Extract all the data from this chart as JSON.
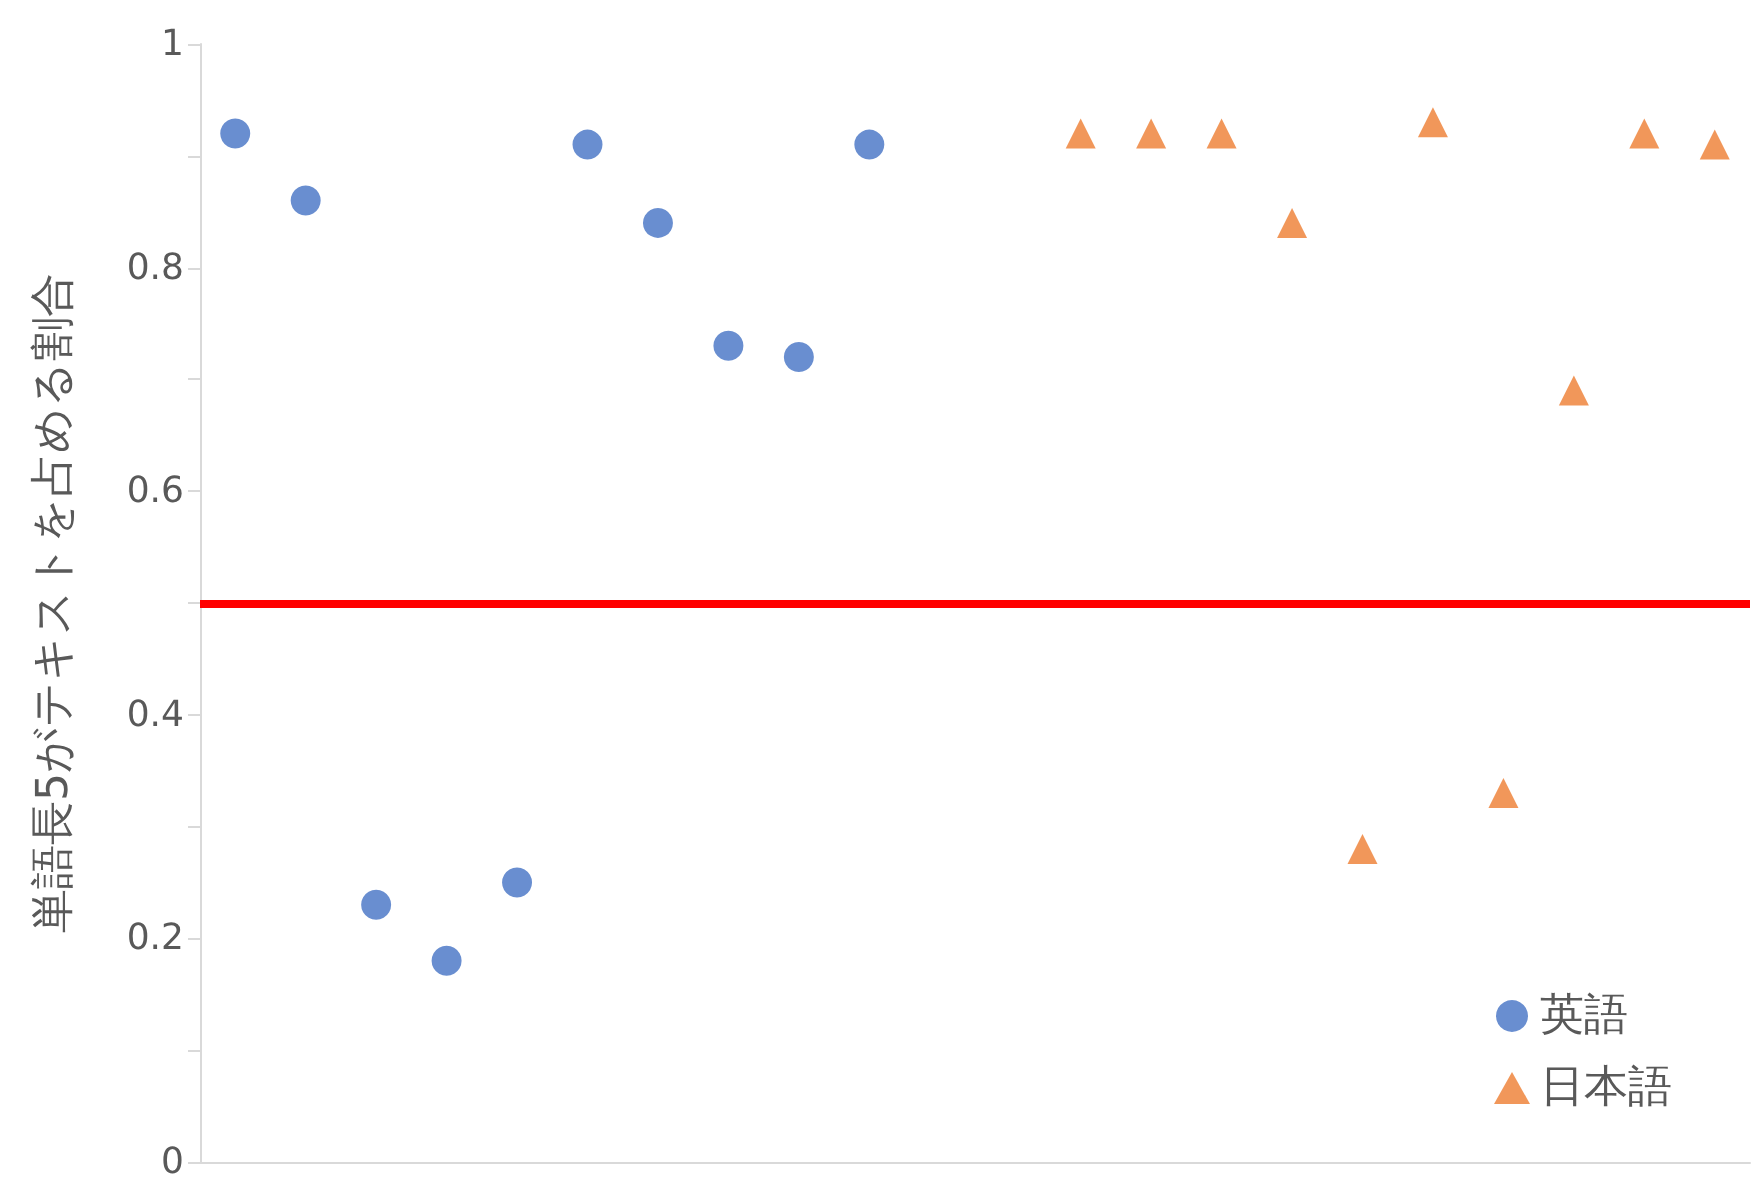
{
  "chart_data": {
    "type": "scatter",
    "ylabel": "単語長5がテキストを占める割合",
    "categories": [
      null,
      null,
      null,
      null,
      null,
      null,
      null,
      null,
      null,
      null,
      null,
      null,
      null,
      null,
      null,
      null,
      null,
      null,
      null,
      null,
      null,
      null
    ],
    "series": [
      {
        "name": "英語",
        "color": "#4472c4",
        "marker": "circle",
        "values": [
          0.92,
          0.86,
          0.23,
          0.18,
          0.25,
          0.91,
          0.84,
          0.73,
          0.72,
          0.91,
          null,
          null,
          null,
          null,
          null,
          null,
          null,
          null,
          null,
          null,
          null,
          null
        ]
      },
      {
        "name": "日本語",
        "color": "#ed7d31",
        "marker": "triangle",
        "values": [
          null,
          null,
          null,
          null,
          null,
          null,
          null,
          null,
          null,
          null,
          null,
          null,
          0.92,
          0.92,
          0.92,
          0.84,
          0.28,
          0.93,
          0.33,
          0.69,
          0.92,
          0.91
        ]
      }
    ],
    "ylim": [
      0,
      1
    ],
    "yticks": [
      0,
      {
        "value": 0.1,
        "label": null
      },
      0.2,
      {
        "value": 0.3,
        "label": null
      },
      0.4,
      {
        "value": 0.5,
        "label": null
      },
      0.6,
      {
        "value": 0.7,
        "label": null
      },
      0.8,
      {
        "value": 0.9,
        "label": null
      },
      1
    ],
    "ref_lines": [
      {
        "axis": "y",
        "value": 0.5,
        "label": null,
        "color": "#ff0000",
        "line_style": "solid"
      }
    ],
    "grid": false,
    "legend": "bottom right",
    "tick_labels": "y"
  }
}
